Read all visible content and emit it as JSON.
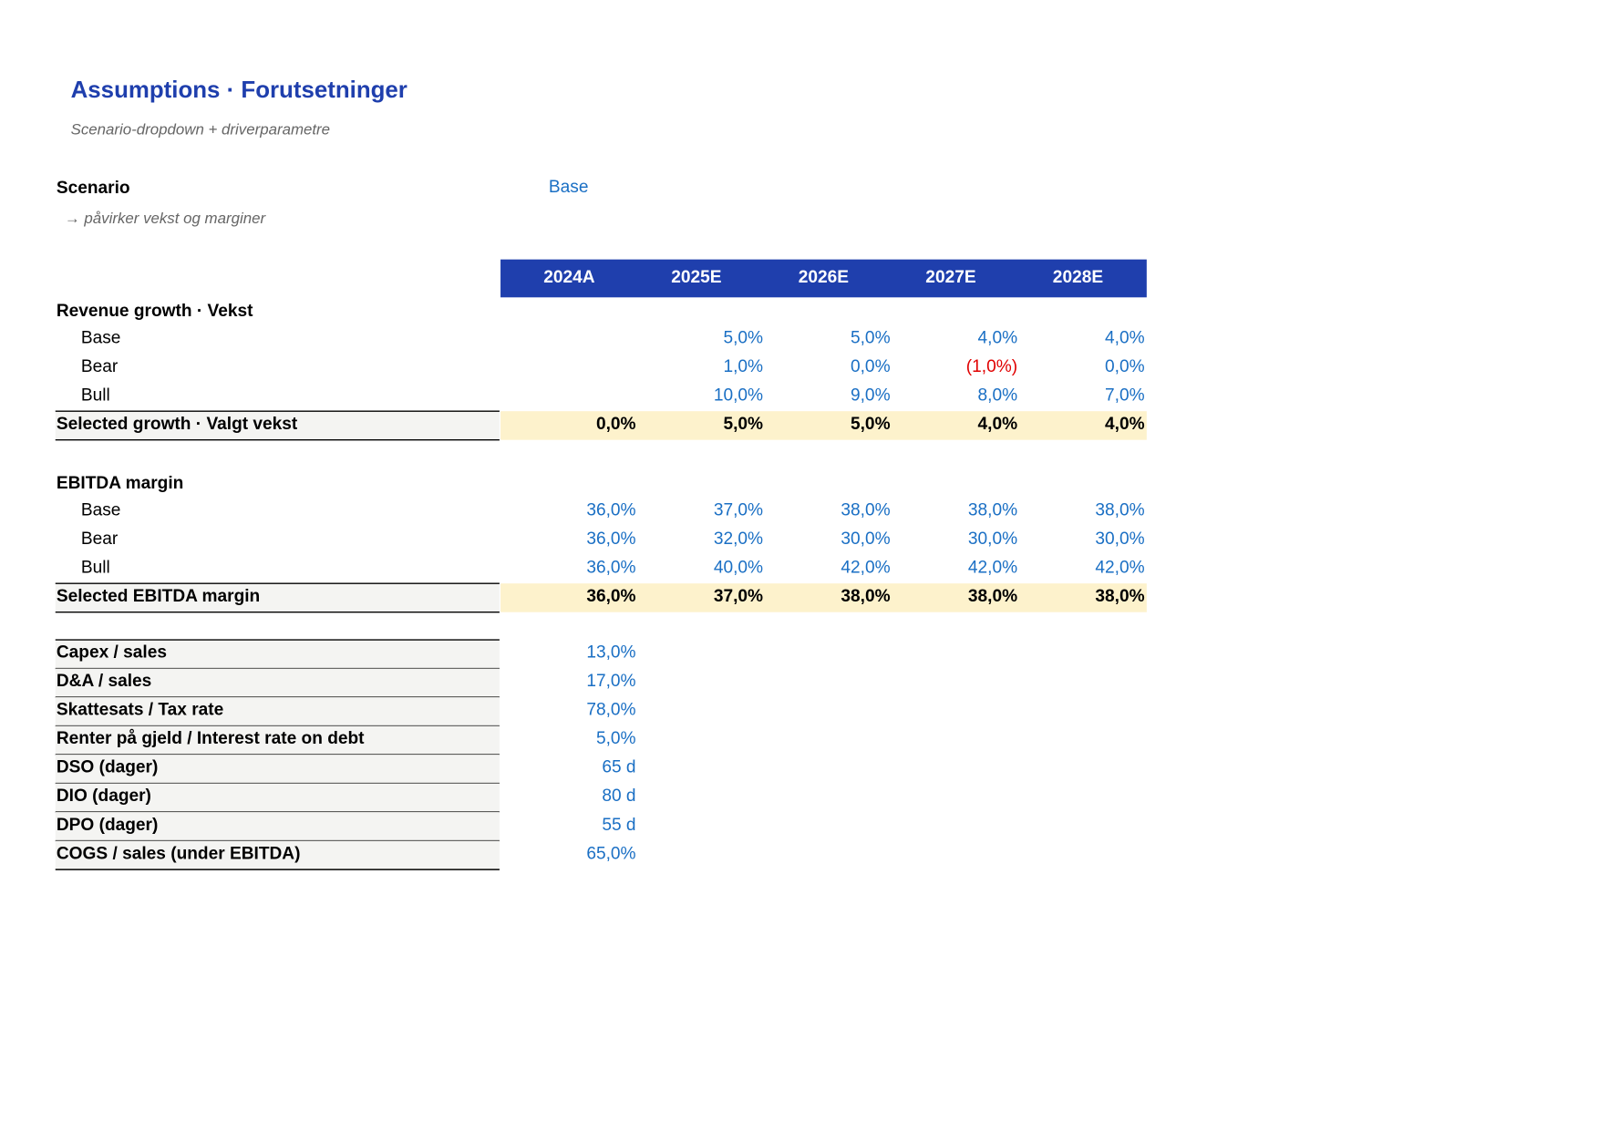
{
  "header": {
    "title": "Assumptions · Forutsetninger",
    "subtitle": "Scenario-dropdown + driverparametre"
  },
  "scenario": {
    "label": "Scenario",
    "value": "Base",
    "note": "→ påvirker vekst og marginer"
  },
  "table": {
    "columns": [
      "2024A",
      "2025E",
      "2026E",
      "2027E",
      "2028E"
    ],
    "sections": [
      {
        "title": "Revenue growth · Vekst",
        "rows": [
          {
            "label": "Base",
            "values": [
              "5,0%",
              "5,0%",
              "4,0%",
              "4,0%"
            ]
          },
          {
            "label": "Bear",
            "values": [
              "1,0%",
              "0,0%",
              "(1,0%)",
              "0,0%"
            ]
          },
          {
            "label": "Bull",
            "values": [
              "10,0%",
              "9,0%",
              "8,0%",
              "7,0%"
            ]
          }
        ],
        "selected": {
          "label": "Selected growth · Valgt vekst",
          "values": [
            "0,0%",
            "5,0%",
            "5,0%",
            "4,0%",
            "4,0%"
          ]
        }
      },
      {
        "title": "EBITDA margin",
        "rows": [
          {
            "label": "Base",
            "values": [
              "36,0%",
              "37,0%",
              "38,0%",
              "38,0%",
              "38,0%"
            ]
          },
          {
            "label": "Bear",
            "values": [
              "36,0%",
              "32,0%",
              "30,0%",
              "30,0%",
              "30,0%"
            ]
          },
          {
            "label": "Bull",
            "values": [
              "36,0%",
              "40,0%",
              "42,0%",
              "42,0%",
              "42,0%"
            ]
          }
        ],
        "selected": {
          "label": "Selected EBITDA margin",
          "values": [
            "36,0%",
            "37,0%",
            "38,0%",
            "38,0%",
            "38,0%"
          ]
        }
      }
    ],
    "parameters": [
      {
        "label": "Capex / sales",
        "value": "13,0%"
      },
      {
        "label": "D&A / sales",
        "value": "17,0%"
      },
      {
        "label": "Skattesats / Tax rate",
        "value": "78,0%"
      },
      {
        "label": "Renter på gjeld / Interest rate on debt",
        "value": "5,0%"
      },
      {
        "label": "DSO (dager)",
        "value": "65 d"
      },
      {
        "label": "DIO (dager)",
        "value": "80 d"
      },
      {
        "label": "DPO (dager)",
        "value": "55 d"
      },
      {
        "label": "COGS / sales (under EBITDA)",
        "value": "65,0%"
      }
    ]
  }
}
